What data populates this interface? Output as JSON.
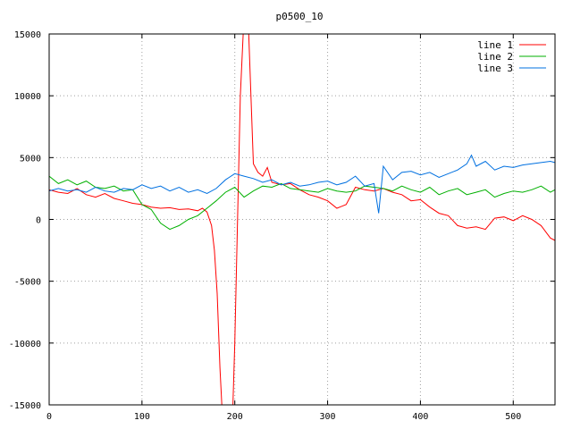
{
  "chart_data": {
    "type": "line",
    "title": "p0500_10",
    "xlabel": "",
    "ylabel": "",
    "xlim": [
      0,
      545
    ],
    "ylim": [
      -15000,
      15000
    ],
    "xticks": [
      0,
      100,
      200,
      300,
      400,
      500
    ],
    "yticks": [
      -15000,
      -10000,
      -5000,
      0,
      5000,
      10000,
      15000
    ],
    "grid": true,
    "legend_position": "top-right",
    "series": [
      {
        "name": "line 1",
        "color": "#ff0000",
        "x": [
          0,
          10,
          20,
          30,
          40,
          50,
          60,
          70,
          80,
          90,
          100,
          110,
          120,
          130,
          140,
          150,
          160,
          165,
          170,
          175,
          178,
          181,
          184,
          186,
          188,
          190,
          193,
          196,
          198,
          200,
          203,
          206,
          209,
          212,
          215,
          220,
          225,
          230,
          235,
          240,
          250,
          260,
          270,
          280,
          290,
          300,
          310,
          320,
          330,
          340,
          350,
          360,
          370,
          380,
          390,
          400,
          410,
          420,
          430,
          440,
          450,
          460,
          470,
          480,
          490,
          500,
          510,
          520,
          530,
          540,
          545
        ],
        "y": [
          2400,
          2200,
          2100,
          2500,
          2000,
          1800,
          2100,
          1700,
          1500,
          1300,
          1200,
          1000,
          900,
          950,
          800,
          850,
          700,
          900,
          600,
          -500,
          -2500,
          -6000,
          -12000,
          -15000,
          -15000,
          -15000,
          -15000,
          -15000,
          -15000,
          -10000,
          0,
          10000,
          15000,
          15000,
          15000,
          4500,
          3800,
          3500,
          4200,
          3000,
          2800,
          2900,
          2400,
          2000,
          1800,
          1500,
          900,
          1200,
          2600,
          2400,
          2300,
          2500,
          2200,
          2000,
          1500,
          1600,
          1000,
          500,
          300,
          -500,
          -700,
          -600,
          -800,
          100,
          200,
          -100,
          300,
          0,
          -500,
          -1500,
          -1700
        ]
      },
      {
        "name": "line 2",
        "color": "#00b000",
        "x": [
          0,
          10,
          20,
          30,
          40,
          50,
          60,
          70,
          80,
          90,
          100,
          110,
          120,
          130,
          140,
          150,
          160,
          170,
          180,
          190,
          200,
          210,
          220,
          230,
          240,
          250,
          260,
          270,
          280,
          290,
          300,
          310,
          320,
          330,
          340,
          350,
          360,
          370,
          380,
          390,
          400,
          410,
          420,
          430,
          440,
          450,
          460,
          470,
          480,
          490,
          500,
          510,
          520,
          530,
          540,
          545
        ],
        "y": [
          3500,
          2900,
          3200,
          2800,
          3100,
          2600,
          2500,
          2700,
          2300,
          2400,
          1200,
          800,
          -300,
          -800,
          -500,
          0,
          300,
          900,
          1500,
          2200,
          2600,
          1800,
          2300,
          2700,
          2600,
          2900,
          2500,
          2400,
          2300,
          2200,
          2500,
          2300,
          2200,
          2300,
          2700,
          2600,
          2500,
          2300,
          2700,
          2400,
          2200,
          2600,
          2000,
          2300,
          2500,
          2000,
          2200,
          2400,
          1800,
          2100,
          2300,
          2200,
          2400,
          2700,
          2200,
          2400
        ]
      },
      {
        "name": "line 3",
        "color": "#0070e0",
        "x": [
          0,
          10,
          20,
          30,
          40,
          50,
          60,
          70,
          80,
          90,
          100,
          110,
          120,
          130,
          140,
          150,
          160,
          170,
          180,
          190,
          200,
          210,
          220,
          230,
          240,
          250,
          260,
          270,
          280,
          290,
          300,
          310,
          320,
          330,
          340,
          350,
          355,
          360,
          370,
          380,
          390,
          400,
          410,
          420,
          430,
          440,
          450,
          455,
          460,
          470,
          480,
          490,
          500,
          510,
          520,
          530,
          540,
          545
        ],
        "y": [
          2300,
          2500,
          2300,
          2400,
          2200,
          2600,
          2300,
          2200,
          2500,
          2400,
          2800,
          2500,
          2700,
          2300,
          2600,
          2200,
          2400,
          2100,
          2500,
          3200,
          3700,
          3500,
          3300,
          3000,
          3200,
          2800,
          3000,
          2700,
          2800,
          3000,
          3100,
          2800,
          3000,
          3500,
          2700,
          2900,
          500,
          4300,
          3200,
          3800,
          3900,
          3600,
          3800,
          3400,
          3700,
          4000,
          4500,
          5200,
          4300,
          4700,
          4000,
          4300,
          4200,
          4400,
          4500,
          4600,
          4700,
          4600
        ]
      }
    ]
  }
}
